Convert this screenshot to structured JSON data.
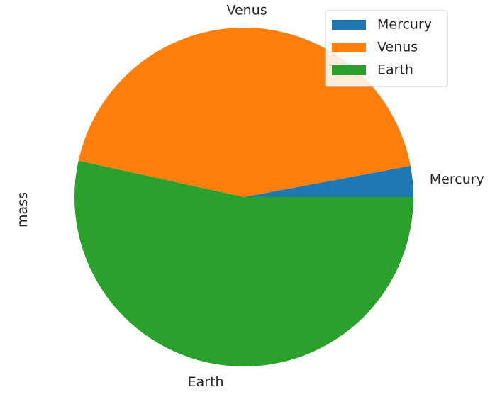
{
  "chart_data": {
    "type": "pie",
    "ylabel": "mass",
    "categories": [
      "Mercury",
      "Venus",
      "Earth"
    ],
    "values": [
      0.33,
      4.87,
      5.97
    ],
    "colors": [
      "#1f77b4",
      "#ff7f0e",
      "#2ca02c"
    ],
    "start_angle_deg": 0,
    "direction": "counterclockwise",
    "legend": {
      "location": "top-right",
      "labels": [
        "Mercury",
        "Venus",
        "Earth"
      ]
    }
  }
}
